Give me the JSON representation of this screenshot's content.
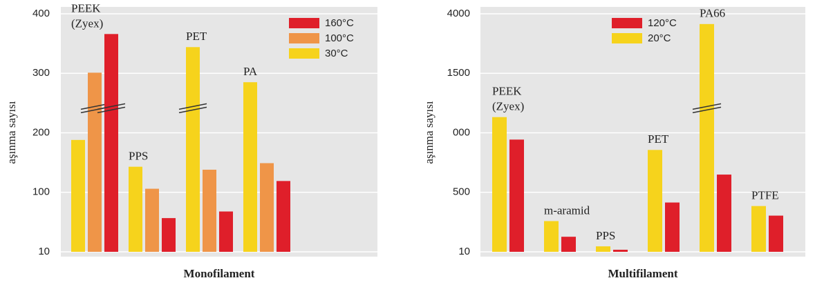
{
  "chart_data": [
    {
      "type": "bar",
      "x_label": "Monofilament",
      "y_label": "aşınma sayısı",
      "categories": [
        "PEEK (Zyex)",
        "PPS",
        "PET",
        "PA"
      ],
      "series": [
        {
          "name": "30°C",
          "color": "#f6d31c",
          "values": [
            188,
            143,
            344,
            285
          ]
        },
        {
          "name": "100°C",
          "color": "#ef9548",
          "values": [
            301,
            106,
            138,
            149
          ]
        },
        {
          "name": "160°C",
          "color": "#df1f2a",
          "values": [
            366,
            61,
            71,
            119
          ]
        }
      ],
      "ylim": [
        10,
        400
      ],
      "yticks": [
        10,
        100,
        200,
        300,
        400
      ],
      "grid": true,
      "legend": "upper right"
    },
    {
      "type": "bar",
      "x_label": "Multifilament",
      "y_label": "aşınma sayısı",
      "categories": [
        "PEEK (Zyex)",
        "m-aramid",
        "PPS",
        "PET",
        "PA66",
        "PTFE"
      ],
      "series": [
        {
          "name": "20°C",
          "color": "#f6d31c",
          "values": [
            1132,
            263,
            55,
            856,
            3570,
            387
          ]
        },
        {
          "name": "120°C",
          "color": "#df1f2a",
          "values": [
            943,
            134,
            27,
            416,
            649,
            308
          ]
        }
      ],
      "ylim": [
        10,
        4000
      ],
      "yticks": [
        10,
        500,
        {
          "value": 1000,
          "label": "000"
        },
        1500,
        4000
      ],
      "grid": true,
      "legend": "upper center"
    }
  ]
}
